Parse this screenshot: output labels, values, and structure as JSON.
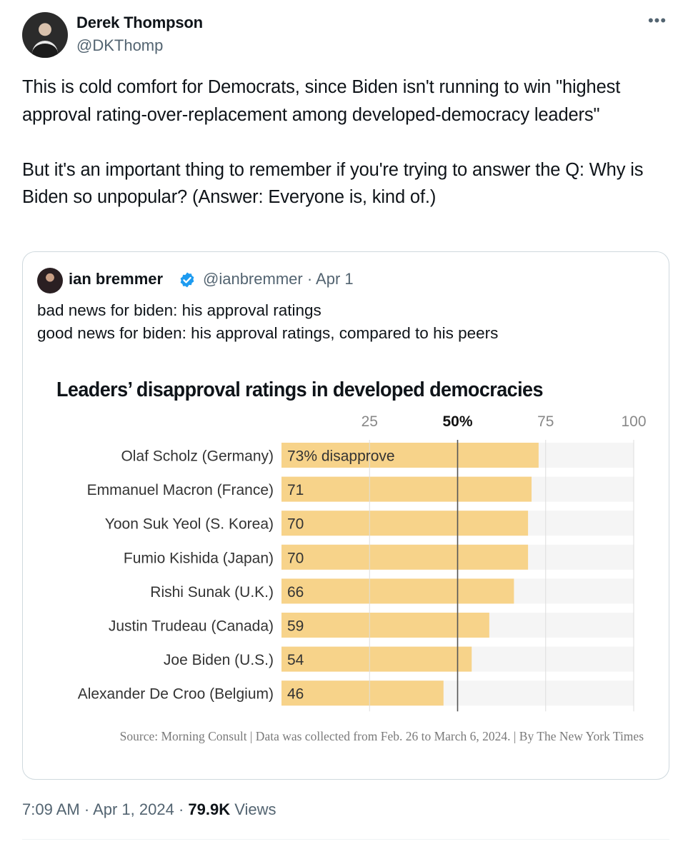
{
  "tweet": {
    "author_name": "Derek Thompson",
    "author_handle": "@DKThomp",
    "more_icon": "more-horizontal-icon",
    "text": "This is cold comfort for Democrats, since Biden isn't running to win \"highest approval rating-over-replacement among developed-democracy leaders\"\n\nBut it's an important thing to remember if you're trying to answer the Q: Why is Biden so unpopular? (Answer: Everyone is, kind of.)",
    "time": "7:09 AM",
    "date": "Apr 1, 2024",
    "separator": "·",
    "views_count": "79.9K",
    "views_label": "Views"
  },
  "quote": {
    "author_name": "ian bremmer",
    "verified_icon": "verified-badge-icon",
    "verified_color": "#1d9bf0",
    "meta": "@ianbremmer · Apr 1",
    "text": "bad news for biden: his approval ratings\ngood news for biden: his approval ratings, compared to his peers"
  },
  "chart_data": {
    "type": "bar",
    "orientation": "horizontal",
    "title": "Leaders’ disapproval ratings in developed democracies",
    "categories": [
      "Olaf Scholz (Germany)",
      "Emmanuel Macron (France)",
      "Yoon Suk Yeol (S. Korea)",
      "Fumio Kishida (Japan)",
      "Rishi Sunak (U.K.)",
      "Justin Trudeau (Canada)",
      "Joe Biden (U.S.)",
      "Alexander De Croo (Belgium)"
    ],
    "values": [
      73,
      71,
      70,
      70,
      66,
      59,
      54,
      46
    ],
    "value_labels": [
      "73% disapprove",
      "71",
      "70",
      "70",
      "66",
      "59",
      "54",
      "46"
    ],
    "xticks": [
      "25",
      "50%",
      "75",
      "100"
    ],
    "xtick_values": [
      25,
      50,
      75,
      100
    ],
    "xlim": [
      0,
      100
    ],
    "reference_line": 50,
    "bar_color": "#f7d38a",
    "track_color": "#f5f5f5",
    "source": "Source: Morning Consult | Data was collected from Feb. 26 to March 6, 2024. | By The New York Times"
  }
}
